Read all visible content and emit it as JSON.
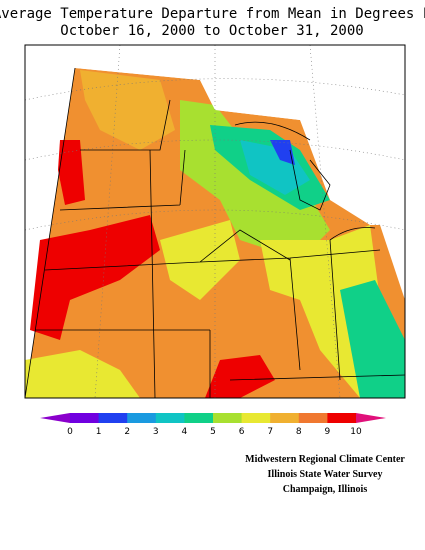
{
  "header": {
    "title_lines": [
      "Average Temperature Departure from Mean in Degrees F",
      "October 16, 2000 to October 31, 2000"
    ]
  },
  "legend": {
    "ticks": [
      0,
      1,
      2,
      3,
      4,
      5,
      6,
      7,
      8,
      9,
      10
    ],
    "colors": [
      "#8a00cc",
      "#7000e0",
      "#2040f0",
      "#1a9ae0",
      "#10c4c4",
      "#10d088",
      "#a8e030",
      "#e8e832",
      "#f0b030",
      "#f07830",
      "#ee0000",
      "#e0107a"
    ]
  },
  "credits": [
    "Midwestern Regional Climate Center",
    "Illinois State Water Survey",
    "Champaign, Illinois"
  ]
}
